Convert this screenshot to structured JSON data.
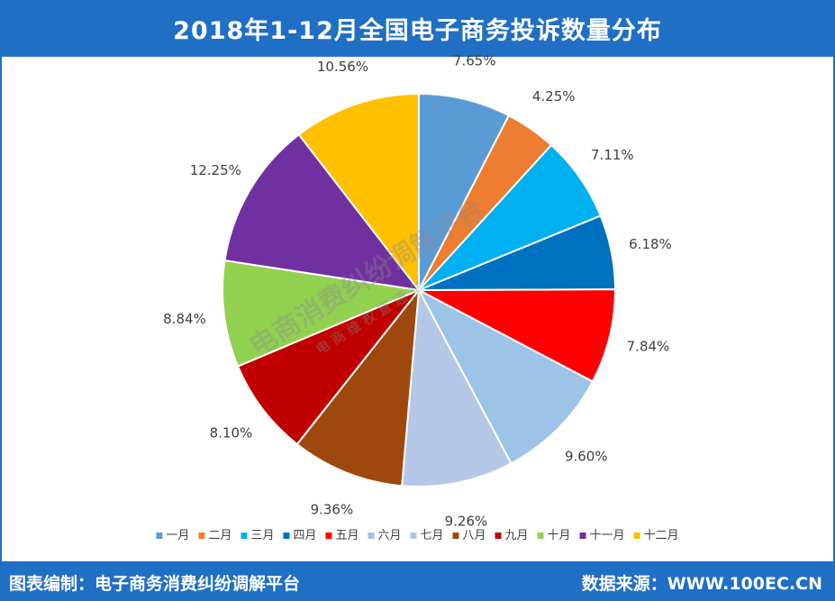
{
  "header": {
    "title": "2018年1-12月全国电子商务投诉数量分布"
  },
  "footer": {
    "left": "图表编制：电子商务消费纠纷调解平台",
    "right": "数据来源：WWW.100EC.CN"
  },
  "watermark": {
    "line1": "电商消费纠纷调解平台",
    "line2": "电 商 维 权 直 通 车"
  },
  "colors": {
    "header_bg": "#1f6fc5",
    "slices": [
      "#5b9bd5",
      "#ed7d31",
      "#00b0f0",
      "#0070c0",
      "#ff0000",
      "#9dc3e6",
      "#b4c7e7",
      "#9e480e",
      "#c00000",
      "#92d050",
      "#7030a0",
      "#ffc000"
    ]
  },
  "chart_data": {
    "type": "pie",
    "title": "2018年1-12月全国电子商务投诉数量分布",
    "categories": [
      "一月",
      "二月",
      "三月",
      "四月",
      "五月",
      "六月",
      "七月",
      "八月",
      "九月",
      "十月",
      "十一月",
      "十二月"
    ],
    "values": [
      7.65,
      4.25,
      7.11,
      6.18,
      7.84,
      9.6,
      9.26,
      9.36,
      8.1,
      8.84,
      12.25,
      10.56
    ],
    "labels": [
      "7.65%",
      "4.25%",
      "7.11%",
      "6.18%",
      "7.84%",
      "9.60%",
      "9.26%",
      "9.36%",
      "8.10%",
      "8.84%",
      "12.25%",
      "10.56%"
    ],
    "legend_position": "bottom"
  }
}
